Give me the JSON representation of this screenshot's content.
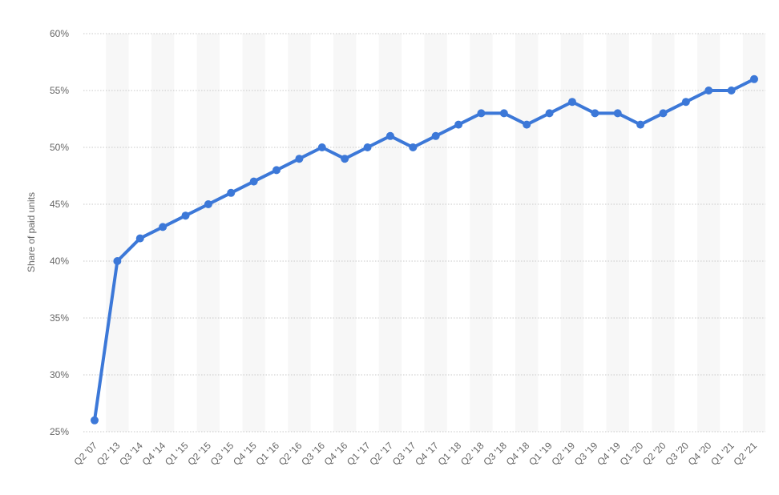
{
  "chart_data": {
    "type": "line",
    "title": "",
    "xlabel": "",
    "ylabel": "Share of paid units",
    "ylim": [
      25,
      60
    ],
    "yticks": [
      25,
      30,
      35,
      40,
      45,
      50,
      55,
      60
    ],
    "ytick_labels": [
      "25%",
      "30%",
      "35%",
      "40%",
      "45%",
      "50%",
      "55%",
      "60%"
    ],
    "grid": true,
    "legend": "none",
    "line_color": "#3C78D8",
    "categories": [
      "Q2 '07",
      "Q2 '13",
      "Q3 '14",
      "Q4 '14",
      "Q1 '15",
      "Q2 '15",
      "Q3 '15",
      "Q4 '15",
      "Q1 '16",
      "Q2 '16",
      "Q3 '16",
      "Q4 '16",
      "Q1 '17",
      "Q2 '17",
      "Q3 '17",
      "Q4 '17",
      "Q1 '18",
      "Q2 '18",
      "Q3 '18",
      "Q4 '18",
      "Q1 '19",
      "Q2 '19",
      "Q3 '19",
      "Q4 '19",
      "Q1 '20",
      "Q2 '20",
      "Q3 '20",
      "Q4 '20",
      "Q1 '21",
      "Q2 '21"
    ],
    "series": [
      {
        "values": [
          26,
          40,
          42,
          43,
          44,
          45,
          46,
          47,
          48,
          49,
          50,
          49,
          50,
          51,
          50,
          51,
          52,
          53,
          53,
          52,
          53,
          54,
          53,
          53,
          52,
          53,
          54,
          55,
          55,
          56
        ]
      }
    ]
  }
}
